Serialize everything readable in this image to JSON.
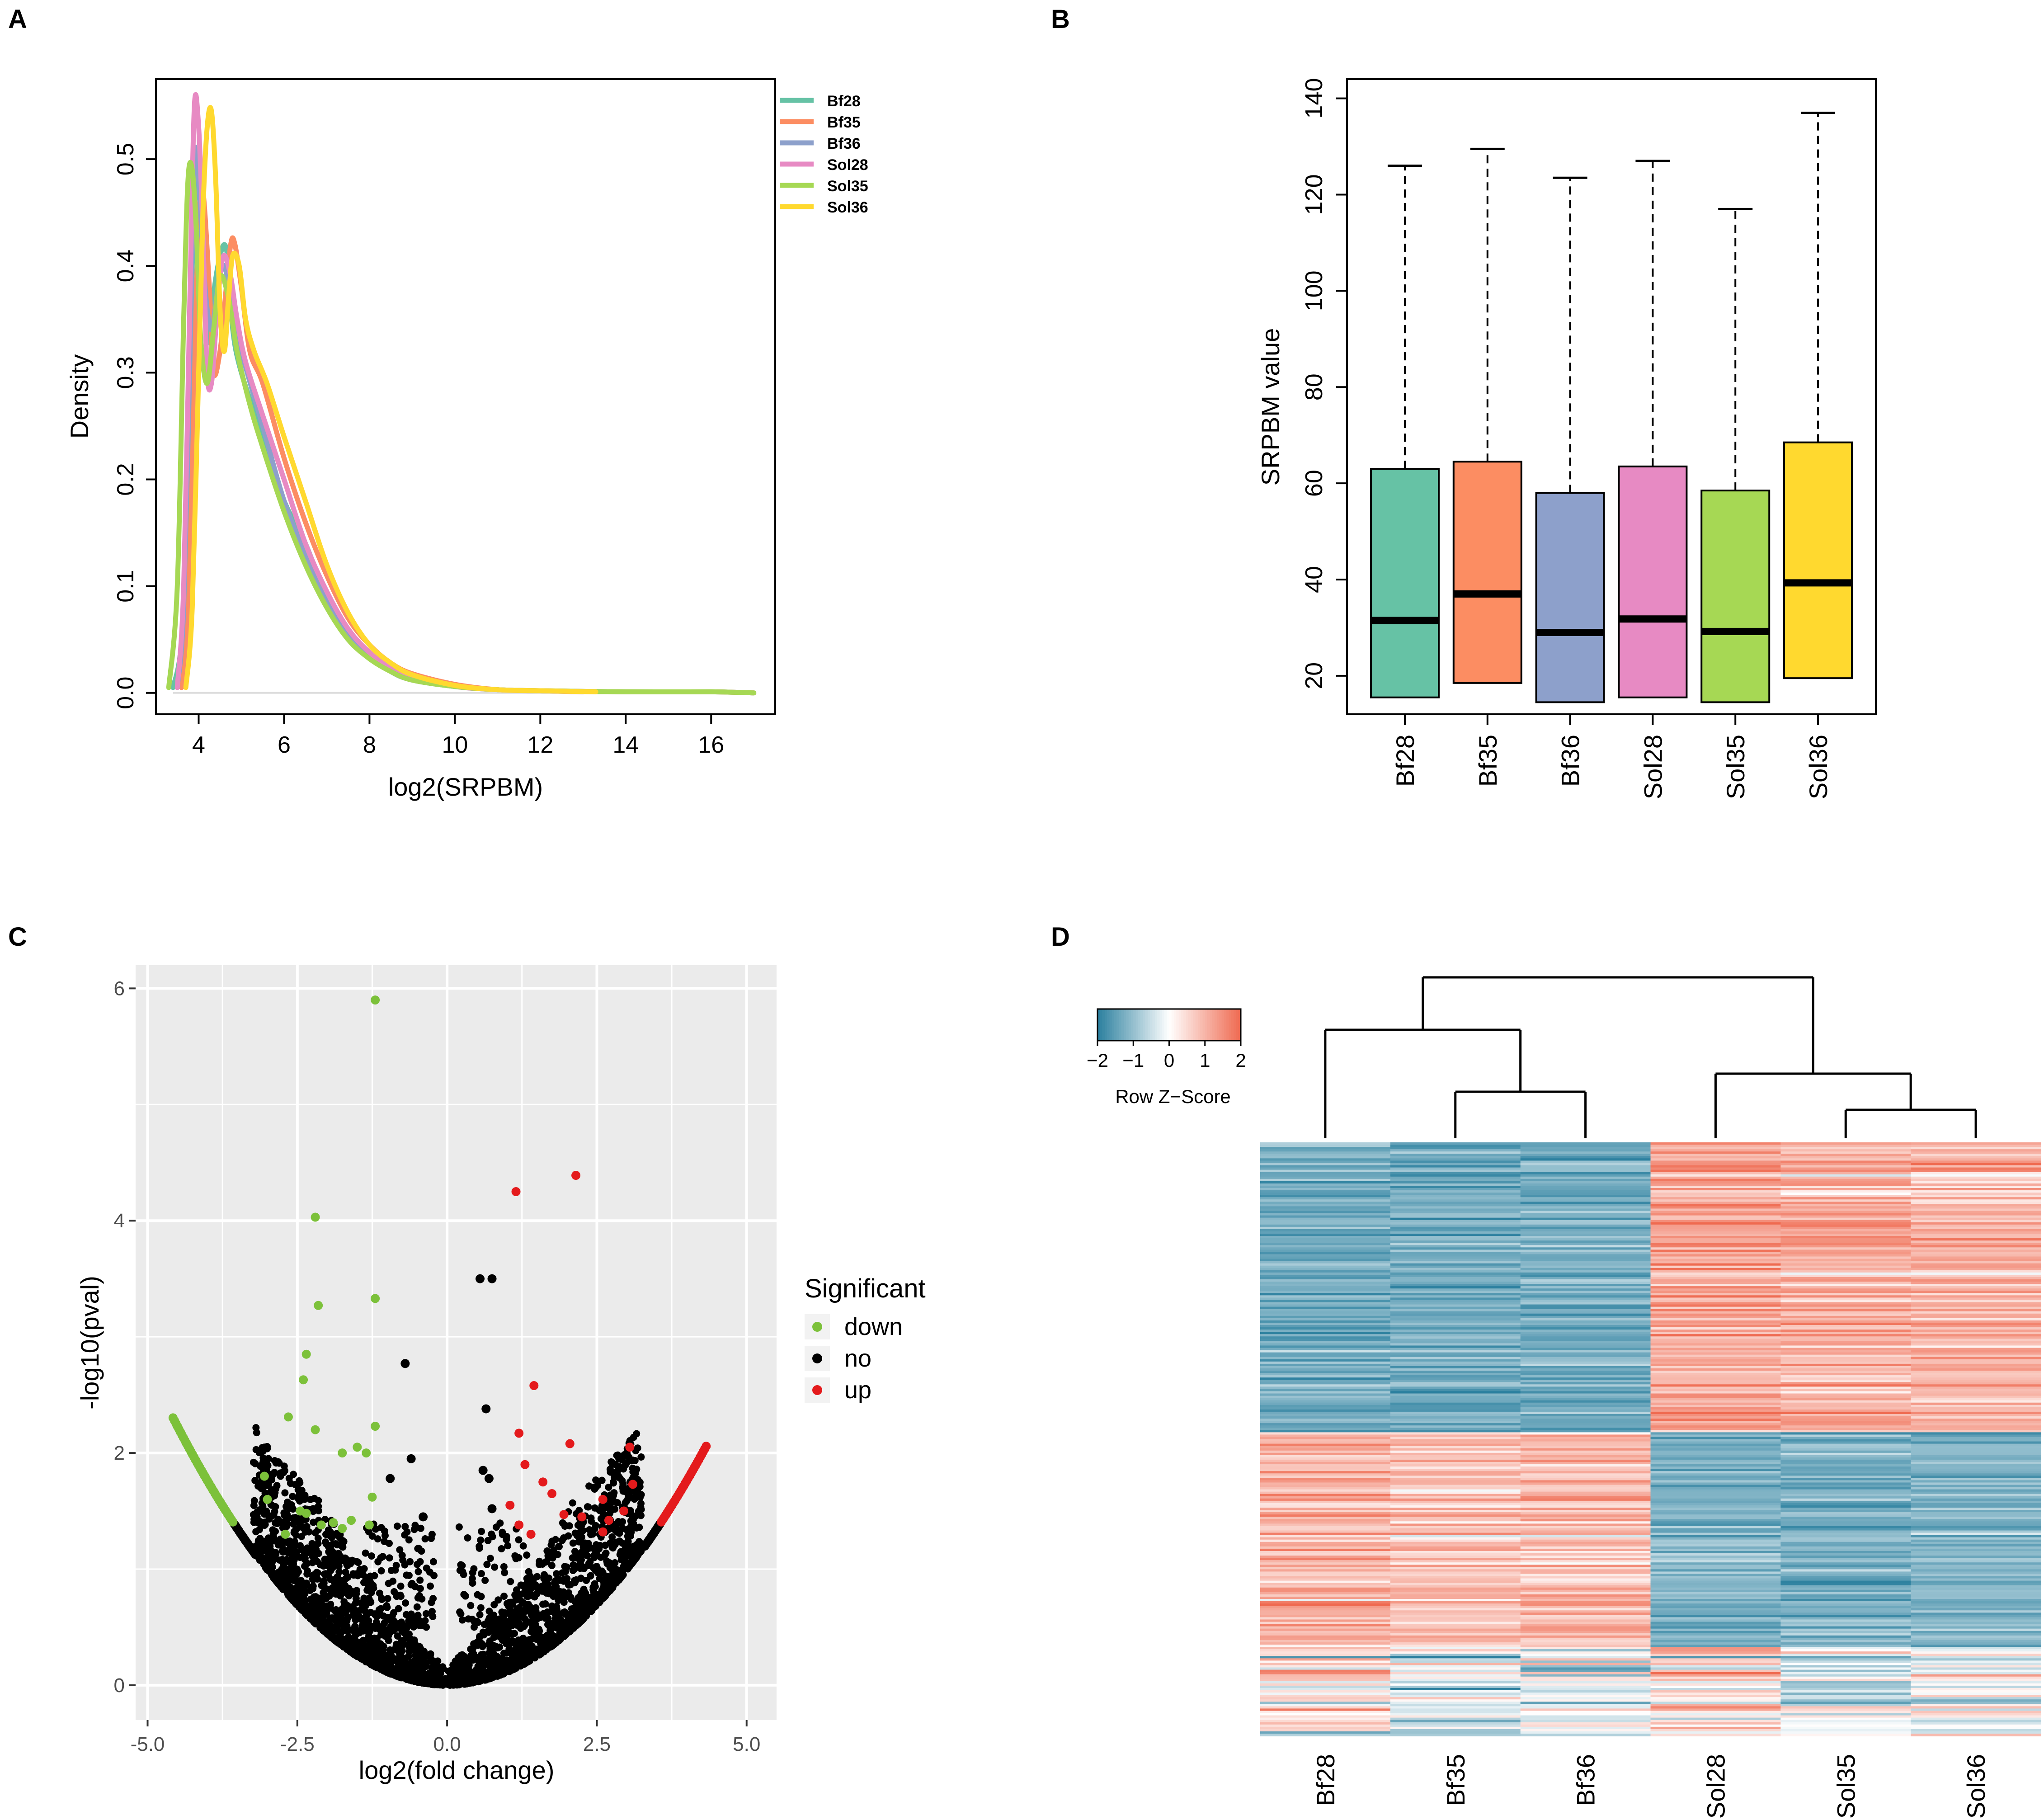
{
  "colors": {
    "Bf28": "#66c2a5",
    "Bf35": "#fc8d62",
    "Bf36": "#8da0cb",
    "Sol28": "#e78ac3",
    "Sol35": "#a6d854",
    "Sol36": "#ffd92f",
    "down": "#7cc13a",
    "no": "#000000",
    "up": "#e41a1c",
    "heat_low": "#2a7f9e",
    "heat_mid": "#ffffff",
    "heat_high": "#ef6a50"
  },
  "chart_data": [
    {
      "panel": "A",
      "type": "line",
      "title": "",
      "xlabel": "log2(SRPBM)",
      "ylabel": "Density",
      "xlim": [
        3.0,
        17.5
      ],
      "ylim": [
        -0.02,
        0.575
      ],
      "xticks": [
        "4",
        "6",
        "8",
        "10",
        "12",
        "14",
        "16"
      ],
      "yticks": [
        "0.0",
        "0.1",
        "0.2",
        "0.3",
        "0.4",
        "0.5"
      ],
      "legend_position": "top-right",
      "series": [
        {
          "name": "Bf28",
          "x": [
            3.4,
            3.6,
            3.75,
            3.85,
            3.95,
            4.1,
            4.2,
            4.3,
            4.45,
            4.6,
            4.7,
            4.8,
            5,
            5.5,
            6,
            6.5,
            7,
            7.5,
            8,
            8.5,
            9,
            10,
            11,
            12,
            14,
            16,
            17
          ],
          "y": [
            0.005,
            0.05,
            0.2,
            0.4,
            0.48,
            0.42,
            0.33,
            0.36,
            0.4,
            0.42,
            0.4,
            0.34,
            0.3,
            0.24,
            0.18,
            0.14,
            0.09,
            0.06,
            0.035,
            0.022,
            0.013,
            0.006,
            0.003,
            0.002,
            0.001,
            0.001,
            0.0
          ]
        },
        {
          "name": "Bf35",
          "x": [
            3.6,
            3.75,
            3.9,
            4.0,
            4.1,
            4.25,
            4.35,
            4.5,
            4.6,
            4.75,
            4.85,
            5,
            5.2,
            5.5,
            6,
            6.5,
            7,
            7.5,
            8,
            8.5,
            9,
            10,
            11,
            12,
            14,
            16,
            17
          ],
          "y": [
            0.005,
            0.08,
            0.3,
            0.44,
            0.47,
            0.38,
            0.3,
            0.32,
            0.36,
            0.42,
            0.42,
            0.38,
            0.32,
            0.29,
            0.22,
            0.16,
            0.11,
            0.07,
            0.045,
            0.028,
            0.018,
            0.008,
            0.003,
            0.002,
            0.001,
            0.001,
            0.0
          ]
        },
        {
          "name": "Bf36",
          "x": [
            3.5,
            3.65,
            3.8,
            3.9,
            4.0,
            4.15,
            4.3,
            4.45,
            4.6,
            4.8,
            5,
            5.5,
            6,
            6.5,
            7,
            7.5,
            8,
            8.5,
            9,
            10,
            11,
            12,
            13
          ],
          "y": [
            0.005,
            0.08,
            0.32,
            0.5,
            0.48,
            0.38,
            0.34,
            0.38,
            0.4,
            0.36,
            0.32,
            0.25,
            0.18,
            0.13,
            0.085,
            0.055,
            0.035,
            0.02,
            0.012,
            0.006,
            0.003,
            0.002,
            0.001
          ]
        },
        {
          "name": "Sol28",
          "x": [
            3.5,
            3.65,
            3.8,
            3.9,
            4.0,
            4.1,
            4.2,
            4.3,
            4.4,
            4.5,
            4.6,
            4.75,
            4.9,
            5.1,
            5.5,
            6,
            6.5,
            7,
            7.5,
            8,
            8.5,
            9,
            10,
            11,
            12,
            13
          ],
          "y": [
            0.005,
            0.1,
            0.38,
            0.55,
            0.53,
            0.43,
            0.3,
            0.29,
            0.34,
            0.39,
            0.41,
            0.39,
            0.35,
            0.31,
            0.26,
            0.2,
            0.14,
            0.095,
            0.06,
            0.038,
            0.024,
            0.014,
            0.006,
            0.003,
            0.002,
            0.001
          ]
        },
        {
          "name": "Sol35",
          "x": [
            3.3,
            3.5,
            3.65,
            3.75,
            3.85,
            3.95,
            4.05,
            4.2,
            4.35,
            4.5,
            4.7,
            4.9,
            5.2,
            5.5,
            6,
            6.5,
            7,
            7.5,
            8,
            8.5,
            9,
            10,
            11,
            12,
            14,
            16,
            17
          ],
          "y": [
            0.005,
            0.1,
            0.35,
            0.48,
            0.49,
            0.43,
            0.33,
            0.29,
            0.34,
            0.39,
            0.37,
            0.32,
            0.27,
            0.23,
            0.17,
            0.12,
            0.08,
            0.05,
            0.032,
            0.02,
            0.012,
            0.006,
            0.003,
            0.002,
            0.001,
            0.001,
            0.0
          ]
        },
        {
          "name": "Sol36",
          "x": [
            3.7,
            3.85,
            4.0,
            4.1,
            4.2,
            4.3,
            4.4,
            4.5,
            4.6,
            4.7,
            4.8,
            4.95,
            5.1,
            5.3,
            5.6,
            6,
            6.5,
            7,
            7.5,
            8,
            8.5,
            9,
            10,
            11,
            12,
            13.3
          ],
          "y": [
            0.005,
            0.08,
            0.3,
            0.45,
            0.53,
            0.545,
            0.48,
            0.36,
            0.32,
            0.37,
            0.41,
            0.4,
            0.35,
            0.32,
            0.29,
            0.24,
            0.18,
            0.12,
            0.075,
            0.045,
            0.028,
            0.017,
            0.007,
            0.003,
            0.002,
            0.001
          ]
        }
      ]
    },
    {
      "panel": "B",
      "type": "box",
      "title": "",
      "xlabel": "",
      "ylabel": "SRPBM value",
      "ylim": [
        12,
        144
      ],
      "yticks": [
        "20",
        "40",
        "60",
        "80",
        "100",
        "120",
        "140"
      ],
      "categories": [
        "Bf28",
        "Bf35",
        "Bf36",
        "Sol28",
        "Sol35",
        "Sol36"
      ],
      "whisker_low": [
        15.5,
        18.5,
        14.5,
        15.5,
        14.5,
        19.5
      ],
      "q1": [
        15.5,
        18.5,
        14.5,
        15.5,
        14.5,
        19.5
      ],
      "median": [
        31.5,
        37,
        29,
        31.8,
        29.2,
        39.3
      ],
      "q3": [
        63,
        64.5,
        58,
        63.5,
        58.5,
        68.5
      ],
      "whisker_high": [
        126,
        129.5,
        123.5,
        127,
        117,
        137
      ]
    },
    {
      "panel": "C",
      "type": "scatter",
      "title": "",
      "xlabel": "log2(fold change)",
      "ylabel": "-log10(pval)",
      "xlim": [
        -5.2,
        5.5
      ],
      "ylim": [
        -0.3,
        6.2
      ],
      "xticks": [
        "-5.0",
        "-2.5",
        "0.0",
        "2.5",
        "5.0"
      ],
      "yticks": [
        "0",
        "2",
        "4",
        "6"
      ],
      "legend_title": "Significant",
      "legend_labels": [
        "down",
        "no",
        "up"
      ],
      "note": "V-shaped cloud of several thousand genes; baseline points follow y = 0.11*x^2 and are generated from this rule.",
      "envelope_coefficient": 0.11,
      "points_down": [
        [
          -1.2,
          5.9
        ],
        [
          -2.2,
          4.03
        ],
        [
          -1.2,
          3.33
        ],
        [
          -2.15,
          3.27
        ],
        [
          -2.35,
          2.85
        ],
        [
          -2.4,
          2.63
        ],
        [
          -2.65,
          2.31
        ],
        [
          -2.2,
          2.2
        ],
        [
          -1.2,
          2.23
        ],
        [
          -1.5,
          2.05
        ],
        [
          -1.75,
          2.0
        ],
        [
          -1.35,
          2.0
        ],
        [
          -3.05,
          1.8
        ],
        [
          -3.0,
          1.6
        ],
        [
          -2.45,
          1.5
        ],
        [
          -2.35,
          1.48
        ],
        [
          -1.6,
          1.42
        ],
        [
          -1.9,
          1.4
        ],
        [
          -1.25,
          1.62
        ],
        [
          -2.1,
          1.38
        ],
        [
          -1.3,
          1.38
        ],
        [
          -2.7,
          1.3
        ],
        [
          -1.75,
          1.35
        ]
      ],
      "points_no_highlight": [
        [
          0.55,
          3.5
        ],
        [
          0.75,
          3.5
        ],
        [
          -0.7,
          2.77
        ],
        [
          0.65,
          2.38
        ],
        [
          -0.6,
          1.95
        ],
        [
          -0.95,
          1.78
        ],
        [
          0.6,
          1.85
        ],
        [
          0.7,
          1.78
        ],
        [
          0.75,
          1.52
        ],
        [
          -0.4,
          1.45
        ]
      ],
      "points_up": [
        [
          2.15,
          4.39
        ],
        [
          1.15,
          4.25
        ],
        [
          1.45,
          2.58
        ],
        [
          1.2,
          2.17
        ],
        [
          2.05,
          2.08
        ],
        [
          3.05,
          2.05
        ],
        [
          1.3,
          1.9
        ],
        [
          1.6,
          1.75
        ],
        [
          1.75,
          1.65
        ],
        [
          3.1,
          1.73
        ],
        [
          2.6,
          1.6
        ],
        [
          2.25,
          1.45
        ],
        [
          1.05,
          1.55
        ],
        [
          1.95,
          1.47
        ],
        [
          2.7,
          1.42
        ],
        [
          1.2,
          1.38
        ],
        [
          1.4,
          1.3
        ],
        [
          2.6,
          1.32
        ],
        [
          2.95,
          1.5
        ]
      ]
    },
    {
      "panel": "D",
      "type": "heatmap",
      "title": "",
      "columns": [
        "Bf28",
        "Bf35",
        "Bf36",
        "Sol28",
        "Sol35",
        "Sol36"
      ],
      "colorbar_label": "Row Z−Score",
      "colorbar_ticks": [
        "−2",
        "−1",
        "0",
        "1",
        "2"
      ],
      "colorbar_range": [
        -2,
        2
      ],
      "dendrogram": "((Bf28,(Bf35,Bf36)),(Sol28,(Sol35,Sol36)))",
      "row_blocks": [
        {
          "fraction": 0.49,
          "means": [
            -1.3,
            -1.3,
            -1.3,
            1.2,
            1.1,
            1.0
          ],
          "noise": 0.55
        },
        {
          "fraction": 0.36,
          "means": [
            1.0,
            0.85,
            0.9,
            -1.2,
            -1.2,
            -1.2
          ],
          "noise": 0.55
        },
        {
          "fraction": 0.15,
          "means": [
            0.2,
            -0.3,
            -0.2,
            0.5,
            -0.2,
            -0.1
          ],
          "noise": 1.1
        }
      ]
    }
  ],
  "panels": {
    "A": {
      "label": "A"
    },
    "B": {
      "label": "B"
    },
    "C": {
      "label": "C"
    },
    "D": {
      "label": "D"
    }
  }
}
